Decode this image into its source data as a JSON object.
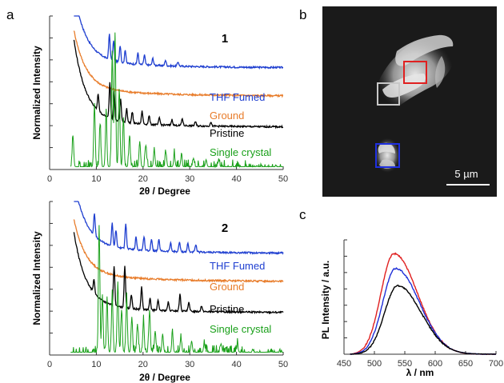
{
  "panel_labels": {
    "a": "a",
    "b": "b",
    "c": "c"
  },
  "chart_data": [
    {
      "type": "line",
      "panel": "a",
      "compound_label": "1",
      "xlabel": "2θ / Degree",
      "ylabel": "Normalized Intensity",
      "xlim": [
        0,
        50
      ],
      "xticks": [
        "0",
        "10",
        "20",
        "30",
        "40",
        "50"
      ],
      "series": [
        {
          "name": "THF Fumed",
          "color": "#1f3fd0",
          "offset": 0.72,
          "decay": 0.95,
          "peaks": [
            [
              12.8,
              0.18
            ],
            [
              13.7,
              0.14
            ],
            [
              15.1,
              0.12
            ],
            [
              16.2,
              0.09
            ],
            [
              18.9,
              0.08
            ],
            [
              20.3,
              0.07
            ],
            [
              22.1,
              0.05
            ],
            [
              24.8,
              0.04
            ],
            [
              27.5,
              0.03
            ]
          ]
        },
        {
          "name": "Ground",
          "color": "#e87c2a",
          "offset": 0.52,
          "decay": 0.8,
          "peaks": []
        },
        {
          "name": "Pristine",
          "color": "#000000",
          "offset": 0.3,
          "decay": 1.1,
          "peaks": [
            [
              10.4,
              0.12
            ],
            [
              12.9,
              0.26
            ],
            [
              13.8,
              0.2
            ],
            [
              15.2,
              0.16
            ],
            [
              16.5,
              0.1
            ],
            [
              17.7,
              0.08
            ],
            [
              19.8,
              0.09
            ],
            [
              21.3,
              0.06
            ],
            [
              23.5,
              0.05
            ],
            [
              26.2,
              0.04
            ],
            [
              28.4,
              0.05
            ],
            [
              31.2,
              0.03
            ],
            [
              34.5,
              0.03
            ]
          ]
        },
        {
          "name": "Single crystal",
          "color": "#1aa01a",
          "offset": 0.02,
          "decay": 0,
          "peaks": [
            [
              5.0,
              0.22
            ],
            [
              9.6,
              0.45
            ],
            [
              10.8,
              0.3
            ],
            [
              12.1,
              0.38
            ],
            [
              13.4,
              0.82
            ],
            [
              14.0,
              0.95
            ],
            [
              14.9,
              0.55
            ],
            [
              15.8,
              0.35
            ],
            [
              17.1,
              0.22
            ],
            [
              19.3,
              0.18
            ],
            [
              20.6,
              0.15
            ],
            [
              22.4,
              0.12
            ],
            [
              24.9,
              0.1
            ],
            [
              26.7,
              0.08
            ],
            [
              28.2,
              0.07
            ],
            [
              30.8,
              0.06
            ],
            [
              33.5,
              0.05
            ],
            [
              36.2,
              0.05
            ]
          ]
        }
      ]
    },
    {
      "type": "line",
      "panel": "a",
      "compound_label": "2",
      "xlabel": "2θ / Degree",
      "ylabel": "Normalized Intensity",
      "xlim": [
        0,
        50
      ],
      "xticks": [
        "0",
        "10",
        "20",
        "30",
        "40",
        "50"
      ],
      "series": [
        {
          "name": "THF Fumed",
          "color": "#1f3fd0",
          "offset": 0.72,
          "decay": 0.9,
          "peaks": [
            [
              9.6,
              0.16
            ],
            [
              13.4,
              0.16
            ],
            [
              14.2,
              0.12
            ],
            [
              16.3,
              0.18
            ],
            [
              18.5,
              0.09
            ],
            [
              20.2,
              0.1
            ],
            [
              21.8,
              0.08
            ],
            [
              23.4,
              0.08
            ],
            [
              25.9,
              0.06
            ],
            [
              27.8,
              0.07
            ],
            [
              29.6,
              0.06
            ],
            [
              31.3,
              0.05
            ]
          ]
        },
        {
          "name": "Ground",
          "color": "#e87c2a",
          "offset": 0.52,
          "decay": 0.75,
          "peaks": []
        },
        {
          "name": "Pristine",
          "color": "#000000",
          "offset": 0.3,
          "decay": 1.0,
          "peaks": [
            [
              9.5,
              0.1
            ],
            [
              13.8,
              0.28
            ],
            [
              16.1,
              0.3
            ],
            [
              17.5,
              0.1
            ],
            [
              19.7,
              0.16
            ],
            [
              21.5,
              0.08
            ],
            [
              23.2,
              0.07
            ],
            [
              25.4,
              0.06
            ],
            [
              27.9,
              0.12
            ],
            [
              29.8,
              0.06
            ],
            [
              32.5,
              0.04
            ]
          ]
        },
        {
          "name": "Single crystal",
          "color": "#1aa01a",
          "offset": 0.02,
          "decay": 0,
          "peaks": [
            [
              10.6,
              0.9
            ],
            [
              11.3,
              0.4
            ],
            [
              12.3,
              0.35
            ],
            [
              13.4,
              0.42
            ],
            [
              14.6,
              0.5
            ],
            [
              15.4,
              0.3
            ],
            [
              16.5,
              0.38
            ],
            [
              17.6,
              0.25
            ],
            [
              18.8,
              0.2
            ],
            [
              20.1,
              0.22
            ],
            [
              21.4,
              0.3
            ],
            [
              22.6,
              0.15
            ],
            [
              24.2,
              0.13
            ],
            [
              26.3,
              0.12
            ],
            [
              28.1,
              0.1
            ],
            [
              30.4,
              0.08
            ],
            [
              33.1,
              0.06
            ],
            [
              36.7,
              0.06
            ],
            [
              40.2,
              0.05
            ]
          ]
        }
      ]
    },
    {
      "type": "line",
      "panel": "c",
      "xlabel": "λ / nm",
      "ylabel": "PL Intensity / a.u.",
      "xlim": [
        450,
        700
      ],
      "xticks": [
        "450",
        "500",
        "550",
        "600",
        "650",
        "700"
      ],
      "series": [
        {
          "color": "#e02020",
          "peak_x": 532,
          "amplitude": 0.88
        },
        {
          "color": "#2030d8",
          "peak_x": 535,
          "amplitude": 0.75
        },
        {
          "color": "#000000",
          "peak_x": 538,
          "amplitude": 0.6
        }
      ]
    }
  ],
  "micrograph": {
    "panel": "b",
    "scale_bar_label": "5 µm",
    "boxes": [
      {
        "color": "#e02020"
      },
      {
        "color": "#c8c8c8"
      },
      {
        "color": "#1f30e0"
      }
    ]
  }
}
